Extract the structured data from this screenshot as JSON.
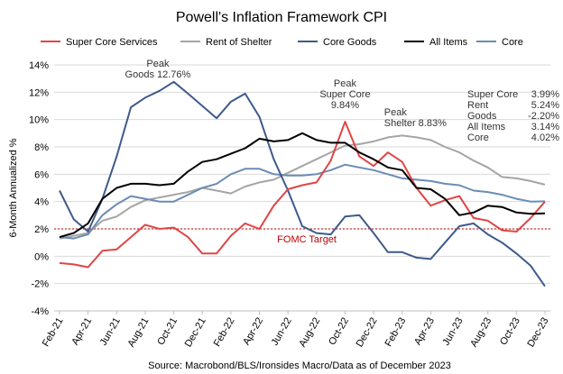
{
  "chart_data": {
    "type": "line",
    "title": "Powell's Inflation Framework CPI",
    "ylabel": "6-Month Annualized %",
    "xlabel": "",
    "ylim": [
      -4,
      14
    ],
    "yticks": [
      -4,
      -2,
      0,
      2,
      4,
      6,
      8,
      10,
      12,
      14
    ],
    "ytick_labels": [
      "-4%",
      "-2%",
      "0%",
      "2%",
      "4%",
      "6%",
      "8%",
      "10%",
      "12%",
      "14%"
    ],
    "x_month_count": 35,
    "x_ticks": [
      {
        "i": 0,
        "label": "Feb-21"
      },
      {
        "i": 2,
        "label": "Apr-21"
      },
      {
        "i": 4,
        "label": "Jun-21"
      },
      {
        "i": 6,
        "label": "Aug-21"
      },
      {
        "i": 8,
        "label": "Oct-21"
      },
      {
        "i": 10,
        "label": "Dec-21"
      },
      {
        "i": 12,
        "label": "Feb-22"
      },
      {
        "i": 14,
        "label": "Apr-22"
      },
      {
        "i": 16,
        "label": "Jun-22"
      },
      {
        "i": 18,
        "label": "Aug-22"
      },
      {
        "i": 20,
        "label": "Oct-22"
      },
      {
        "i": 22,
        "label": "Dec-22"
      },
      {
        "i": 24,
        "label": "Feb-23"
      },
      {
        "i": 26,
        "label": "Apr-23"
      },
      {
        "i": 28,
        "label": "Jun-23"
      },
      {
        "i": 30,
        "label": "Aug-23"
      },
      {
        "i": 32,
        "label": "Oct-23"
      },
      {
        "i": 34,
        "label": "Dec-23"
      }
    ],
    "series": [
      {
        "key": "super_core",
        "name": "Super Core Services",
        "color": "#e04545",
        "values": [
          -0.5,
          -0.6,
          -0.8,
          0.4,
          0.5,
          1.4,
          2.3,
          2.0,
          2.1,
          1.4,
          0.2,
          0.2,
          1.5,
          2.4,
          2.0,
          3.7,
          4.9,
          5.2,
          5.4,
          7.0,
          9.84,
          7.3,
          6.6,
          7.6,
          6.9,
          5.0,
          3.7,
          4.1,
          4.4,
          2.8,
          2.6,
          1.9,
          1.8,
          2.8,
          3.99
        ]
      },
      {
        "key": "shelter",
        "name": "Rent of Shelter",
        "color": "#a5a5a5",
        "values": [
          1.3,
          1.5,
          1.7,
          2.6,
          2.9,
          3.6,
          4.1,
          4.3,
          4.5,
          4.7,
          5.0,
          4.8,
          4.6,
          5.1,
          5.4,
          5.6,
          6.1,
          6.6,
          7.1,
          7.6,
          8.1,
          8.2,
          8.4,
          8.7,
          8.83,
          8.7,
          8.5,
          8.0,
          7.6,
          7.0,
          6.5,
          5.8,
          5.7,
          5.5,
          5.24
        ]
      },
      {
        "key": "goods",
        "name": "Core Goods",
        "color": "#3e5a8c",
        "values": [
          4.8,
          2.7,
          1.8,
          4.2,
          7.3,
          10.9,
          11.6,
          12.1,
          12.76,
          11.9,
          11.0,
          10.1,
          11.3,
          11.9,
          10.2,
          7.1,
          4.8,
          2.2,
          1.7,
          1.6,
          2.9,
          3.0,
          1.7,
          0.3,
          0.3,
          -0.1,
          -0.2,
          1.0,
          2.2,
          2.4,
          1.6,
          1.0,
          0.2,
          -0.7,
          -2.2
        ]
      },
      {
        "key": "all_items",
        "name": "All Items",
        "color": "#000000",
        "values": [
          1.4,
          1.7,
          2.4,
          4.2,
          5.0,
          5.3,
          5.3,
          5.2,
          5.3,
          6.2,
          6.9,
          7.1,
          7.5,
          7.9,
          8.6,
          8.4,
          8.5,
          9.0,
          8.5,
          8.3,
          8.3,
          7.6,
          7.1,
          6.5,
          6.3,
          5.0,
          4.9,
          4.2,
          3.0,
          3.2,
          3.7,
          3.6,
          3.2,
          3.1,
          3.14
        ]
      },
      {
        "key": "core",
        "name": "Core",
        "color": "#6a8cb4",
        "values": [
          1.4,
          1.3,
          1.6,
          3.0,
          3.8,
          4.4,
          4.2,
          4.0,
          4.0,
          4.5,
          5.0,
          5.3,
          6.0,
          6.4,
          6.4,
          6.0,
          5.9,
          5.9,
          6.0,
          6.3,
          6.7,
          6.5,
          6.3,
          6.0,
          5.7,
          5.6,
          5.5,
          5.3,
          5.2,
          4.8,
          4.7,
          4.5,
          4.2,
          4.0,
          4.02
        ]
      }
    ],
    "reference_line": {
      "value": 2,
      "label": "FOMC Target",
      "color": "#c00000"
    },
    "annotations": [
      {
        "key": "goods_peak",
        "lines": [
          "Peak",
          "Goods 12.76%"
        ],
        "at_index": 8,
        "series": "goods"
      },
      {
        "key": "super_core_peak",
        "lines": [
          "Peak",
          "Super Core",
          "9.84%"
        ],
        "at_index": 20,
        "series": "super_core"
      },
      {
        "key": "shelter_peak",
        "lines": [
          "Peak",
          "Shelter 8.83%"
        ],
        "at_index": 24,
        "series": "shelter"
      }
    ],
    "latest_table": [
      {
        "label": "Super Core",
        "value": "3.99%"
      },
      {
        "label": "Rent",
        "value": "5.24%"
      },
      {
        "label": "Goods",
        "value": "-2.20%"
      },
      {
        "label": "All Items",
        "value": "3.14%"
      },
      {
        "label": "Core",
        "value": "4.02%"
      }
    ],
    "source": "Source: Macrobond/BLS/Ironsides Macro/Data as of December 2023"
  }
}
